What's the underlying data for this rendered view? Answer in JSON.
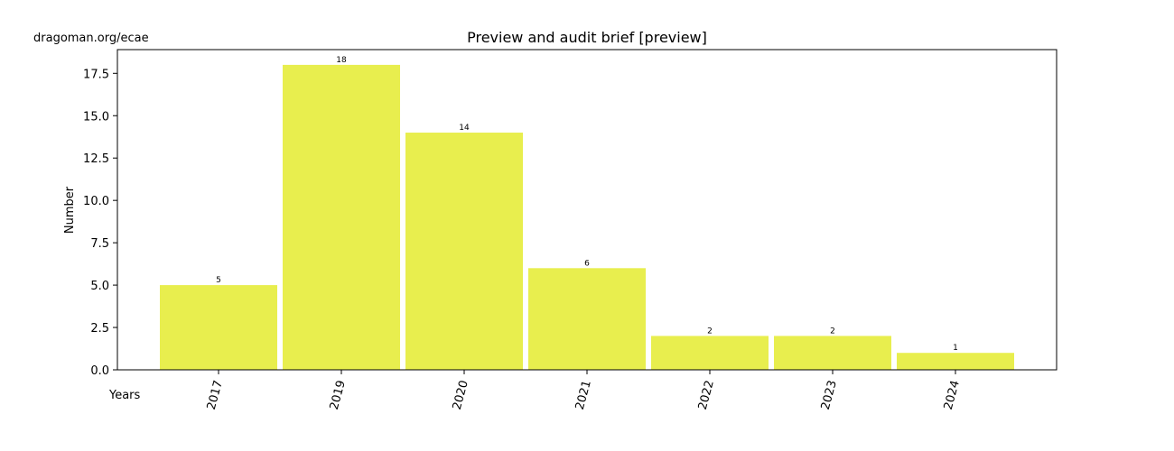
{
  "header": {
    "source": "dragoman.org/ecae"
  },
  "chart_data": {
    "type": "bar",
    "title": "Preview and audit brief  [preview]",
    "xlabel": "Years",
    "ylabel": "Number",
    "categories": [
      "2017",
      "2019",
      "2020",
      "2021",
      "2022",
      "2023",
      "2024"
    ],
    "values": [
      5,
      18,
      14,
      6,
      2,
      2,
      1
    ],
    "data_labels": [
      "5",
      "18",
      "14",
      "6",
      "2",
      "2",
      "1"
    ],
    "ylim": [
      0,
      18.9
    ],
    "yticks": [
      0.0,
      2.5,
      5.0,
      7.5,
      10.0,
      12.5,
      15.0,
      17.5
    ],
    "ytick_labels": [
      "0.0",
      "2.5",
      "5.0",
      "7.5",
      "10.0",
      "12.5",
      "15.0",
      "17.5"
    ],
    "bar_color": "#e8ee4e",
    "grid": false,
    "legend": "none"
  }
}
